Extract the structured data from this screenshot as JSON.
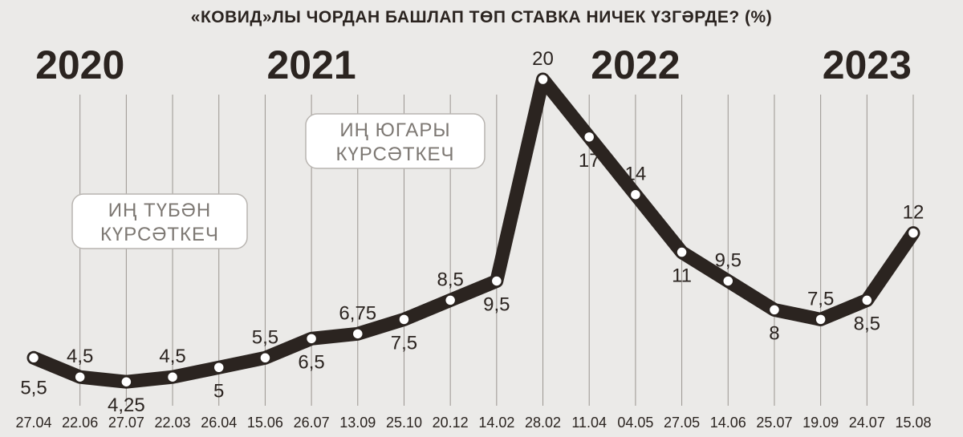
{
  "chart_data": {
    "type": "line",
    "title": "«КОВИД»ЛЫ ЧОРДАН БАШЛАП ТӨП СТАВКА НИЧЕК ҮЗГӘРДЕ? (%)",
    "x": [
      "27.04",
      "22.06",
      "27.07",
      "22.03",
      "26.04",
      "15.06",
      "26.07",
      "13.09",
      "25.10",
      "20.12",
      "14.02",
      "28.02",
      "11.04",
      "04.05",
      "27.05",
      "14.06",
      "25.07",
      "19.09",
      "24.07",
      "15.08"
    ],
    "values": [
      5.5,
      4.5,
      4.25,
      4.5,
      5,
      5.5,
      6.5,
      6.75,
      7.5,
      8.5,
      9.5,
      20,
      17,
      14,
      11,
      9.5,
      8,
      7.5,
      8.5,
      12
    ],
    "value_labels": [
      "5,5",
      "4,5",
      "4,25",
      "4,5",
      "5",
      "5,5",
      "6,5",
      "6,75",
      "7,5",
      "8,5",
      "9,5",
      "20",
      "17",
      "14",
      "11",
      "9,5",
      "8",
      "7,5",
      "8,5",
      "12"
    ],
    "label_positions": [
      "below",
      "above",
      "below",
      "above",
      "below",
      "above",
      "below",
      "above",
      "below",
      "above",
      "below",
      "above",
      "below",
      "above",
      "below",
      "above",
      "below",
      "above",
      "below",
      "above"
    ],
    "years": [
      {
        "label": "2020",
        "at_index": 1
      },
      {
        "label": "2021",
        "at_index": 6
      },
      {
        "label": "2022",
        "at_index": 13
      },
      {
        "label": "2023",
        "at_index": 18
      }
    ],
    "annotations": [
      {
        "line1": "ИҢ ТҮБӘН",
        "line2": "КҮРСӘТКЕЧ"
      },
      {
        "line1": "ИҢ ЮГАРЫ",
        "line2": "КҮРСӘТКЕЧ"
      }
    ],
    "ylim": [
      0,
      21
    ],
    "grid": true,
    "colors": {
      "line": "#2b2420",
      "background": "#ebeae8",
      "grid": "#9a9590",
      "marker": "#ffffff"
    }
  }
}
